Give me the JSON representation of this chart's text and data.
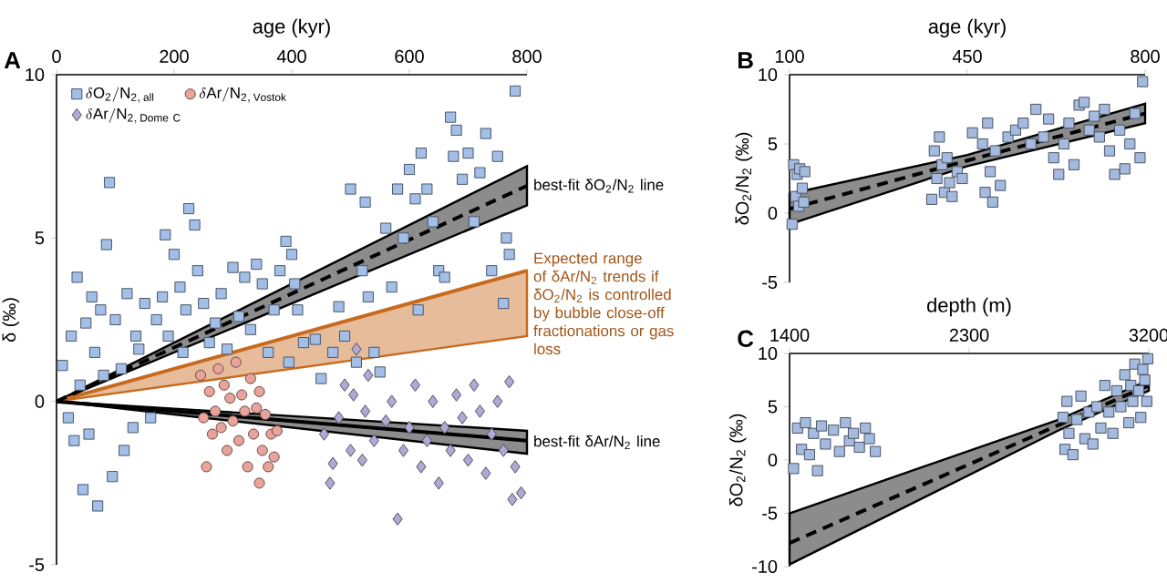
{
  "chart_data": [
    {
      "type": "scatter",
      "title": "A",
      "xlabel": "age (kyr)",
      "ylabel": "δ (‰)",
      "xlim": [
        0,
        800
      ],
      "xticks": [
        0,
        200,
        400,
        600,
        800
      ],
      "ylim": [
        -5,
        10
      ],
      "yticks": [
        -5,
        0,
        5,
        10
      ],
      "legend": "top left",
      "series": [
        {
          "type": "line",
          "name": "Expected range of δAr/N$_{2}$ trends if δO$_{2}$/N$_{2}$ is controlled by bubble close-off fractionations or gas loss",
          "color": "#c86a1e",
          "line_style": "solid",
          "x": [
            0,
            800
          ],
          "values": [
            0,
            4.0
          ],
          "lower": [
            0,
            2.0
          ],
          "upper": [
            0,
            4.0
          ]
        },
        {
          "name": "\\delta\\mathrm{O_2/N_{2,\\,all}}",
          "color": "#a3bfe8",
          "marker": "square",
          "x": [
            10,
            20,
            25,
            30,
            35,
            40,
            45,
            50,
            55,
            60,
            65,
            70,
            75,
            80,
            85,
            90,
            95,
            100,
            110,
            115,
            120,
            130,
            135,
            140,
            150,
            160,
            170,
            180,
            185,
            190,
            200,
            210,
            215,
            220,
            225,
            235,
            240,
            250,
            260,
            270,
            280,
            290,
            300,
            310,
            320,
            330,
            340,
            350,
            360,
            370,
            380,
            390,
            395,
            400,
            405,
            410,
            420,
            440,
            450,
            470,
            480,
            490,
            500,
            510,
            520,
            525,
            530,
            540,
            550,
            560,
            570,
            580,
            590,
            600,
            610,
            615,
            620,
            630,
            640,
            650,
            660,
            670,
            675,
            680,
            690,
            700,
            710,
            720,
            730,
            740,
            750,
            760,
            765,
            770,
            780
          ],
          "values": [
            1.1,
            -0.5,
            2.0,
            -1.2,
            3.8,
            0.5,
            -2.7,
            2.4,
            -1.0,
            3.2,
            1.5,
            -3.2,
            2.8,
            0.8,
            4.8,
            6.7,
            -2.3,
            2.5,
            1.0,
            -1.5,
            3.3,
            -0.8,
            2.0,
            1.6,
            3.0,
            -0.5,
            2.5,
            3.2,
            5.1,
            2.0,
            4.5,
            3.5,
            1.5,
            2.8,
            5.9,
            5.4,
            4.0,
            3.0,
            1.8,
            2.4,
            3.3,
            1.6,
            4.1,
            2.6,
            3.8,
            2.2,
            4.2,
            3.6,
            1.5,
            2.8,
            4.0,
            4.9,
            1.2,
            4.5,
            3.6,
            2.8,
            1.8,
            1.9,
            0.7,
            1.5,
            2.9,
            2.0,
            6.5,
            1.2,
            4.0,
            6.1,
            3.2,
            1.5,
            0.9,
            5.3,
            3.5,
            6.5,
            5.0,
            7.1,
            6.2,
            2.8,
            7.6,
            6.5,
            5.5,
            4.0,
            3.8,
            8.7,
            7.5,
            8.3,
            6.8,
            7.6,
            5.5,
            7.0,
            8.2,
            4.0,
            7.5,
            3.0,
            5.0,
            4.5,
            9.5
          ]
        },
        {
          "name": "\\delta\\mathrm{Ar/N_{2,\\,Vostok}}",
          "color": "#e8a39a",
          "marker": "circle",
          "x": [
            245,
            250,
            255,
            260,
            265,
            270,
            275,
            280,
            285,
            290,
            295,
            300,
            305,
            310,
            315,
            320,
            325,
            330,
            335,
            340,
            345,
            350,
            355,
            360,
            365,
            370,
            375,
            345
          ],
          "values": [
            0.8,
            -0.5,
            -2.0,
            0.3,
            -1.0,
            -0.3,
            1.0,
            -0.8,
            0.5,
            -1.5,
            0.1,
            -0.6,
            1.2,
            -1.2,
            0.2,
            -0.3,
            -2.0,
            0.7,
            -1.0,
            -0.2,
            -2.5,
            -1.5,
            -0.4,
            -2.0,
            -1.0,
            -1.7,
            -0.9,
            0.3
          ]
        },
        {
          "name": "\\delta\\mathrm{Ar/N_{2,\\,Dome\\ C}}",
          "color": "#b3a8d4",
          "marker": "diamond",
          "x": [
            455,
            465,
            470,
            480,
            490,
            500,
            505,
            510,
            520,
            525,
            530,
            540,
            560,
            570,
            580,
            590,
            600,
            610,
            620,
            630,
            640,
            650,
            660,
            670,
            680,
            690,
            700,
            710,
            720,
            730,
            740,
            750,
            760,
            770,
            780,
            790,
            775
          ],
          "values": [
            -1.0,
            -2.5,
            -1.9,
            -0.5,
            0.5,
            -1.5,
            0.2,
            1.6,
            -1.8,
            -0.3,
            0.8,
            -1.2,
            -0.6,
            0.0,
            -3.6,
            -1.5,
            -0.8,
            0.5,
            -2.0,
            -1.2,
            0.0,
            -2.5,
            -0.8,
            -1.5,
            0.2,
            -0.5,
            -1.8,
            0.5,
            -0.3,
            -2.2,
            -1.0,
            0.0,
            -1.5,
            0.6,
            -2.0,
            -2.8,
            -3.0
          ]
        },
        {
          "type": "line",
          "name": "best-fit δO$_{2}$/N$_{2}$ line",
          "color": "#000000",
          "line_style": "dashed",
          "x": [
            0,
            800
          ],
          "values": [
            0,
            6.6
          ],
          "lower": [
            0,
            6.0
          ],
          "upper": [
            0,
            7.2
          ]
        },
        {
          "type": "line",
          "name": "best-fit δAr/N$_{2}$ line",
          "color": "#000000",
          "line_style": "solid",
          "x": [
            0,
            800
          ],
          "values": [
            0,
            -1.2
          ],
          "lower": [
            0,
            -1.6
          ],
          "upper": [
            0,
            -0.9
          ]
        }
      ]
    },
    {
      "type": "scatter",
      "title": "B",
      "xlabel": "age (kyr)",
      "ylabel": "δO$_{2}$/N$_{2}$ (‰)",
      "xlim": [
        100,
        800
      ],
      "xticks": [
        100,
        450,
        800
      ],
      "ylim": [
        -5,
        10
      ],
      "yticks": [
        -5,
        0,
        5,
        10
      ],
      "series": [
        {
          "color": "#a5badf",
          "marker": "square",
          "x": [
            105,
            108,
            112,
            115,
            118,
            120,
            125,
            128,
            130,
            380,
            385,
            390,
            395,
            400,
            405,
            410,
            415,
            420,
            430,
            440,
            460,
            480,
            485,
            490,
            495,
            500,
            505,
            515,
            530,
            545,
            560,
            575,
            585,
            600,
            610,
            620,
            630,
            640,
            650,
            660,
            670,
            680,
            690,
            700,
            710,
            720,
            730,
            740,
            750,
            760,
            770,
            780,
            790,
            795
          ],
          "values": [
            -0.8,
            3.5,
            1.2,
            2.8,
            0.5,
            3.2,
            1.8,
            0.8,
            3.0,
            1.0,
            4.5,
            2.5,
            5.5,
            3.5,
            1.5,
            4.0,
            2.2,
            1.2,
            3.0,
            2.5,
            5.8,
            5.0,
            1.5,
            6.5,
            3.0,
            0.8,
            4.5,
            2.0,
            5.5,
            6.0,
            6.5,
            5.0,
            7.5,
            5.5,
            6.8,
            4.0,
            2.8,
            5.0,
            6.5,
            3.5,
            7.8,
            8.0,
            6.0,
            7.0,
            5.5,
            7.5,
            4.5,
            2.8,
            6.0,
            3.2,
            5.0,
            7.2,
            4.0,
            9.5
          ]
        },
        {
          "type": "line",
          "color": "#000000",
          "line_style": "dashed",
          "x": [
            100,
            450,
            800
          ],
          "values": [
            0.3,
            3.8,
            7.2
          ],
          "lower": [
            -0.8,
            3.4,
            6.5
          ],
          "upper": [
            1.4,
            4.2,
            7.9
          ]
        }
      ]
    },
    {
      "type": "scatter",
      "title": "C",
      "xlabel": "depth (m)",
      "ylabel": "δO$_{2}$/N$_{2}$ (‰)",
      "xlim": [
        1400,
        3200
      ],
      "xticks": [
        1400,
        2300,
        3200
      ],
      "ylim": [
        -10,
        10
      ],
      "yticks": [
        -10,
        -5,
        0,
        5,
        10
      ],
      "series": [
        {
          "color": "#a5badf",
          "marker": "square",
          "x": [
            1420,
            1440,
            1460,
            1480,
            1500,
            1520,
            1540,
            1560,
            1580,
            1620,
            1650,
            1680,
            1700,
            1720,
            1750,
            1780,
            1800,
            1830,
            2770,
            2780,
            2790,
            2800,
            2820,
            2840,
            2860,
            2880,
            2900,
            2920,
            2940,
            2960,
            2980,
            3000,
            3020,
            3040,
            3060,
            3080,
            3100,
            3110,
            3120,
            3130,
            3150,
            3160,
            3170,
            3180,
            3190,
            3195
          ],
          "values": [
            -0.8,
            3.0,
            1.0,
            3.5,
            0.5,
            2.5,
            -1.0,
            3.2,
            1.5,
            2.8,
            0.8,
            3.5,
            1.8,
            2.5,
            1.2,
            3.0,
            2.0,
            0.8,
            4.0,
            1.0,
            5.5,
            2.5,
            0.5,
            3.8,
            6.0,
            2.0,
            4.5,
            1.5,
            5.0,
            3.0,
            7.0,
            4.5,
            2.5,
            6.5,
            5.0,
            8.0,
            3.5,
            7.0,
            5.5,
            9.0,
            6.5,
            4.0,
            8.5,
            7.5,
            5.5,
            9.5
          ]
        },
        {
          "type": "line",
          "color": "#000000",
          "line_style": "dashed",
          "x": [
            1400,
            2750,
            3200
          ],
          "values": [
            -7.8,
            3.3,
            7.0
          ],
          "lower": [
            -9.8,
            2.8,
            6.5
          ],
          "upper": [
            -5.0,
            3.8,
            7.5
          ]
        }
      ]
    }
  ]
}
